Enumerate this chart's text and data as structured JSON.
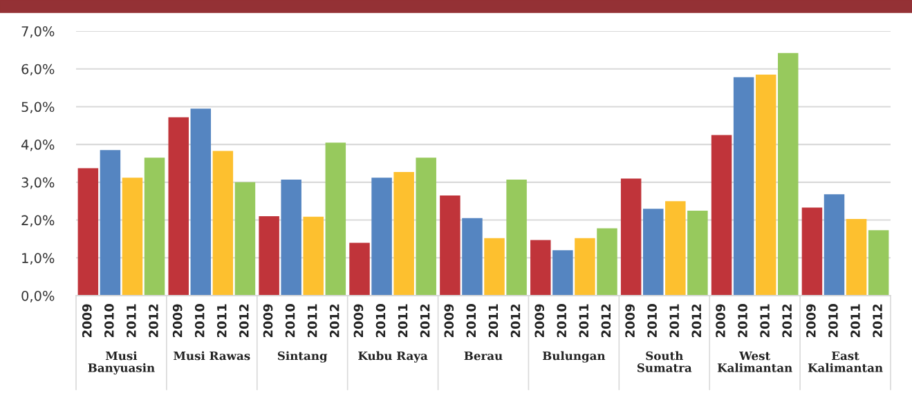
{
  "chart_data": {
    "type": "bar",
    "categories": [
      "Musi\nBanyuasin",
      "Musi Rawas",
      "Sintang",
      "Kubu Raya",
      "Berau",
      "Bulungan",
      "South\nSumatra",
      "West\nKalimantan",
      "East\nKalimantan"
    ],
    "series": [
      {
        "name": "2009",
        "color": "#c0343a",
        "values": [
          3.37,
          4.72,
          2.1,
          1.4,
          2.65,
          1.47,
          3.1,
          4.25,
          2.33
        ]
      },
      {
        "name": "2010",
        "color": "#5585c1",
        "values": [
          3.85,
          4.95,
          3.07,
          3.12,
          2.05,
          1.2,
          2.3,
          5.78,
          2.68
        ]
      },
      {
        "name": "2011",
        "color": "#fdc02f",
        "values": [
          3.12,
          3.83,
          2.09,
          3.27,
          1.52,
          1.52,
          2.5,
          5.85,
          2.03
        ]
      },
      {
        "name": "2012",
        "color": "#97c95d",
        "values": [
          3.65,
          3.0,
          4.05,
          3.65,
          3.07,
          1.78,
          2.25,
          6.42,
          1.73
        ]
      }
    ],
    "ylim": [
      0,
      7
    ],
    "yticks": [
      {
        "value": 0,
        "label": "0,0%"
      },
      {
        "value": 1,
        "label": "1,0%"
      },
      {
        "value": 2,
        "label": "2,0%"
      },
      {
        "value": 3,
        "label": "3,0%"
      },
      {
        "value": 4,
        "label": "4,0%"
      },
      {
        "value": 5,
        "label": "5,0%"
      },
      {
        "value": 6,
        "label": "6,0%"
      },
      {
        "value": 7,
        "label": "7,0%"
      }
    ],
    "grid": "y",
    "legend": false
  }
}
